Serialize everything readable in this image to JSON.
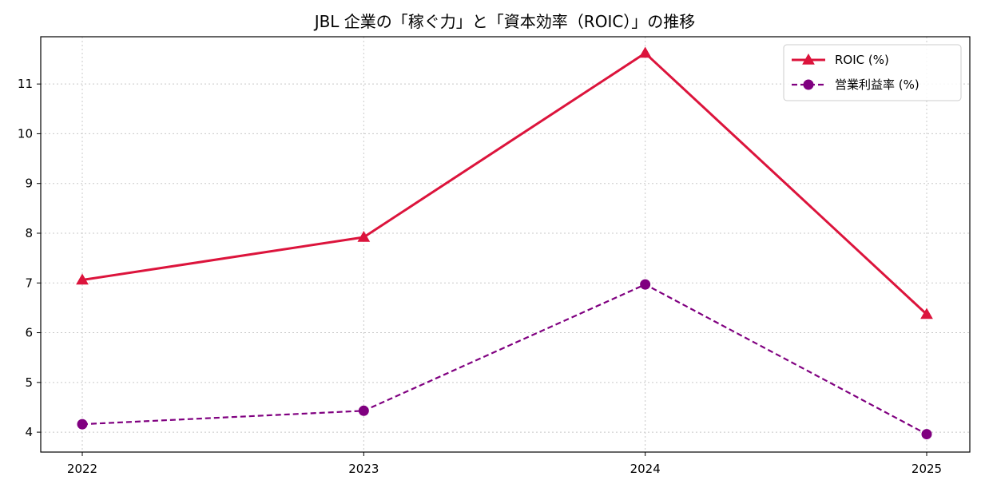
{
  "chart_data": {
    "type": "line",
    "title": "JBL 企業の「稼ぐ力」と「資本効率（ROIC）」の推移",
    "xlabel": "",
    "ylabel": "",
    "categories": [
      "2022",
      "2023",
      "2024",
      "2025"
    ],
    "yticks": [
      "4",
      "5",
      "6",
      "7",
      "8",
      "9",
      "10",
      "11"
    ],
    "ylim": [
      3.6,
      11.95
    ],
    "grid": true,
    "legend_position": "top-right",
    "series": [
      {
        "name": "ROIC (%)",
        "values": [
          7.06,
          7.92,
          11.62,
          6.37
        ],
        "color": "#dc143c",
        "line_style": "solid",
        "marker": "triangle"
      },
      {
        "name": "営業利益率 (%)",
        "values": [
          4.16,
          4.43,
          6.97,
          3.96
        ],
        "color": "#800080",
        "line_style": "dashed",
        "marker": "circle"
      }
    ]
  }
}
